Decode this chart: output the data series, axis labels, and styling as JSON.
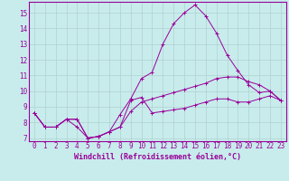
{
  "xlabel": "Windchill (Refroidissement éolien,°C)",
  "background_color": "#c8ecec",
  "grid_color": "#b0d0d0",
  "line_color": "#990099",
  "xlim": [
    -0.5,
    23.5
  ],
  "ylim": [
    6.8,
    15.7
  ],
  "xticks": [
    0,
    1,
    2,
    3,
    4,
    5,
    6,
    7,
    8,
    9,
    10,
    11,
    12,
    13,
    14,
    15,
    16,
    17,
    18,
    19,
    20,
    21,
    22,
    23
  ],
  "yticks": [
    7,
    8,
    9,
    10,
    11,
    12,
    13,
    14,
    15
  ],
  "hours": [
    0,
    1,
    2,
    3,
    4,
    5,
    6,
    7,
    8,
    9,
    10,
    11,
    12,
    13,
    14,
    15,
    16,
    17,
    18,
    19,
    20,
    21,
    22,
    23
  ],
  "line1": [
    8.6,
    7.7,
    7.7,
    8.2,
    8.2,
    7.0,
    7.1,
    7.4,
    7.7,
    9.4,
    9.6,
    8.6,
    8.7,
    8.8,
    8.9,
    9.1,
    9.3,
    9.5,
    9.5,
    9.3,
    9.3,
    9.5,
    9.7,
    9.4
  ],
  "line2": [
    8.6,
    7.7,
    7.7,
    8.2,
    8.2,
    7.0,
    7.1,
    7.4,
    8.5,
    9.5,
    10.8,
    11.2,
    13.0,
    14.3,
    15.0,
    15.5,
    14.8,
    13.7,
    12.3,
    11.3,
    10.4,
    9.9,
    10.0,
    9.4
  ],
  "line3": [
    8.6,
    7.7,
    7.7,
    8.2,
    7.7,
    7.0,
    7.1,
    7.4,
    7.7,
    8.7,
    9.3,
    9.5,
    9.7,
    9.9,
    10.1,
    10.3,
    10.5,
    10.8,
    10.9,
    10.9,
    10.6,
    10.4,
    10.0,
    9.4
  ],
  "tick_fontsize": 5.5,
  "xlabel_fontsize": 6.0
}
